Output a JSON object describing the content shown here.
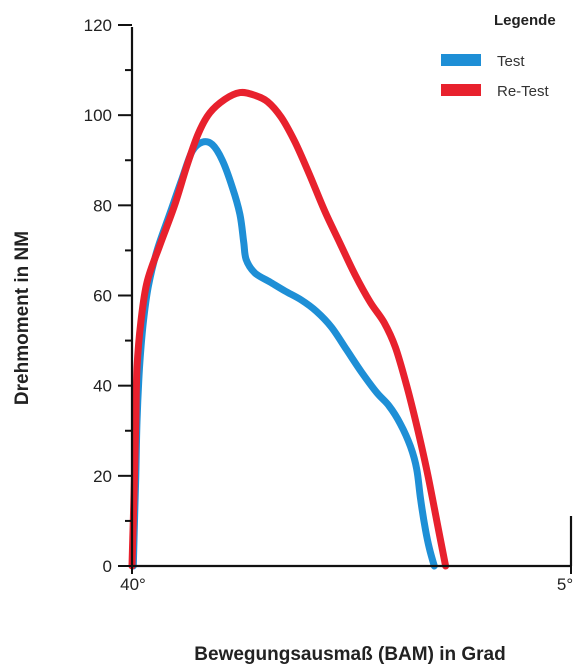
{
  "chart_data": {
    "type": "line",
    "xlabel": "Bewegungsausmaß (BAM) in Grad",
    "ylabel": "Drehmoment in NM",
    "x_tick_labels": [
      "40°",
      "5°"
    ],
    "x_range_label_positions": [
      "left",
      "right"
    ],
    "xlim": [
      40,
      5
    ],
    "ylim": [
      0,
      120
    ],
    "y_ticks": [
      0,
      20,
      40,
      60,
      80,
      100,
      120
    ],
    "grid": false,
    "legend": {
      "title": "Legende",
      "placement": "top-right"
    },
    "series": [
      {
        "name": "Test",
        "color": "#1e8fd6",
        "points": [
          [
            39.9,
            0
          ],
          [
            39.8,
            10
          ],
          [
            39.7,
            20
          ],
          [
            39.6,
            32
          ],
          [
            39.4,
            44
          ],
          [
            39.1,
            54
          ],
          [
            38.7,
            62
          ],
          [
            38.0,
            70
          ],
          [
            37.0,
            78
          ],
          [
            36.0,
            86
          ],
          [
            35.2,
            92
          ],
          [
            34.4,
            94
          ],
          [
            33.6,
            93.5
          ],
          [
            32.8,
            90
          ],
          [
            32.0,
            84
          ],
          [
            31.4,
            78
          ],
          [
            31.1,
            72
          ],
          [
            30.9,
            68
          ],
          [
            30.2,
            65
          ],
          [
            29.0,
            63
          ],
          [
            27.8,
            61
          ],
          [
            26.5,
            59
          ],
          [
            25.3,
            56.5
          ],
          [
            24.1,
            53
          ],
          [
            22.9,
            48
          ],
          [
            21.7,
            43
          ],
          [
            20.5,
            38.5
          ],
          [
            19.5,
            35.5
          ],
          [
            18.6,
            31.5
          ],
          [
            17.8,
            26.5
          ],
          [
            17.3,
            21.5
          ],
          [
            17.0,
            15
          ],
          [
            16.6,
            8
          ],
          [
            16.3,
            4
          ],
          [
            15.9,
            0
          ]
        ]
      },
      {
        "name": "Re-Test",
        "color": "#e8212d",
        "points": [
          [
            40.0,
            0
          ],
          [
            39.9,
            10
          ],
          [
            39.8,
            20
          ],
          [
            39.7,
            32
          ],
          [
            39.6,
            44
          ],
          [
            39.3,
            54
          ],
          [
            38.8,
            63
          ],
          [
            37.8,
            71
          ],
          [
            36.6,
            80
          ],
          [
            35.6,
            89
          ],
          [
            34.7,
            96
          ],
          [
            33.8,
            100.5
          ],
          [
            32.6,
            103.5
          ],
          [
            31.4,
            105
          ],
          [
            30.3,
            104.5
          ],
          [
            29.2,
            103
          ],
          [
            28.1,
            99.5
          ],
          [
            27.0,
            94
          ],
          [
            25.8,
            86.5
          ],
          [
            24.6,
            78.5
          ],
          [
            23.4,
            71.5
          ],
          [
            22.2,
            64.5
          ],
          [
            21.0,
            58.5
          ],
          [
            19.9,
            54
          ],
          [
            19.0,
            48.5
          ],
          [
            18.1,
            40
          ],
          [
            17.2,
            30
          ],
          [
            16.4,
            20
          ],
          [
            15.7,
            10
          ],
          [
            15.0,
            0
          ]
        ]
      }
    ]
  }
}
